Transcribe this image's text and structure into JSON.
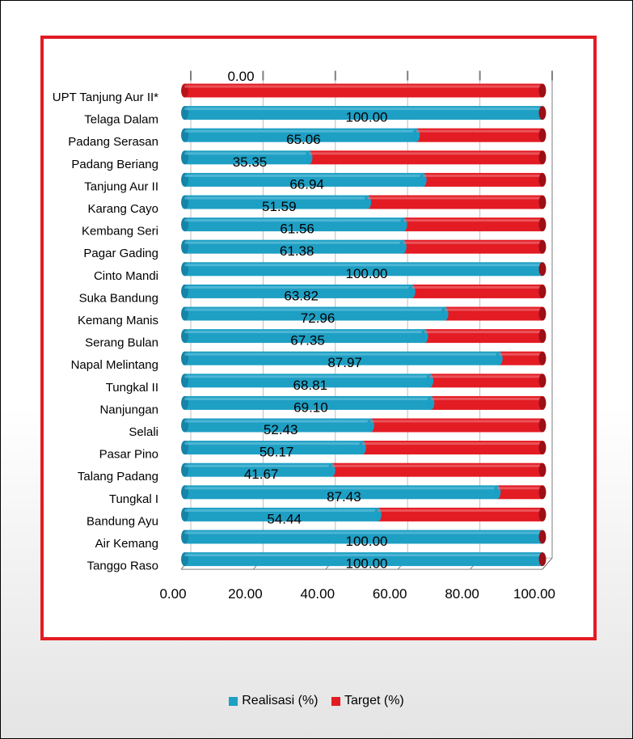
{
  "chart_data": {
    "type": "bar",
    "orientation": "horizontal",
    "stacked": true,
    "categories": [
      "UPT Tanjung Aur II*",
      "Telaga Dalam",
      "Padang Serasan",
      "Padang Beriang",
      "Tanjung Aur II",
      "Karang Cayo",
      "Kembang Seri",
      "Pagar Gading",
      "Cinto Mandi",
      "Suka Bandung",
      "Kemang Manis",
      "Serang Bulan",
      "Napal Melintang",
      "Tungkal II",
      "Nanjungan",
      "Selali",
      "Pasar Pino",
      "Talang Padang",
      "Tungkal I",
      "Bandung Ayu",
      "Air Kemang",
      "Tanggo Raso"
    ],
    "series": [
      {
        "name": "Realisasi (%)",
        "color": "#1e9fc4",
        "values": [
          0.0,
          100.0,
          65.06,
          35.35,
          66.94,
          51.59,
          61.56,
          61.38,
          100.0,
          63.82,
          72.96,
          67.35,
          87.97,
          68.81,
          69.1,
          52.43,
          50.17,
          41.67,
          87.43,
          54.44,
          100.0,
          100.0
        ]
      },
      {
        "name": "Target (%)",
        "color": "#e31b23",
        "values": [
          100,
          0,
          34.94,
          64.65,
          33.06,
          48.41,
          38.44,
          38.62,
          0,
          36.18,
          27.04,
          32.65,
          12.03,
          31.19,
          30.9,
          47.57,
          49.83,
          58.33,
          12.57,
          45.56,
          0,
          0
        ]
      }
    ],
    "data_labels": [
      "0.00",
      "100.00",
      "65.06",
      "35.35",
      "66.94",
      "51.59",
      "61.56",
      "61.38",
      "100.00",
      "63.82",
      "72.96",
      "67.35",
      "87.97",
      "68.81",
      "69.10",
      "52.43",
      "50.17",
      "41.67",
      "87.43",
      "54.44",
      "100.00",
      "100.00"
    ],
    "x_ticks": [
      "0.00",
      "20.00",
      "40.00",
      "60.00",
      "80.00",
      "100.00"
    ],
    "xlim": [
      0,
      100
    ],
    "grid": true,
    "legend_position": "bottom"
  },
  "colors": {
    "realisasi": "#1e9fc4",
    "target": "#e31b23",
    "border": "#e31b23"
  },
  "legend": {
    "realisasi_label": "Realisasi (%)",
    "target_label": "Target (%)"
  }
}
